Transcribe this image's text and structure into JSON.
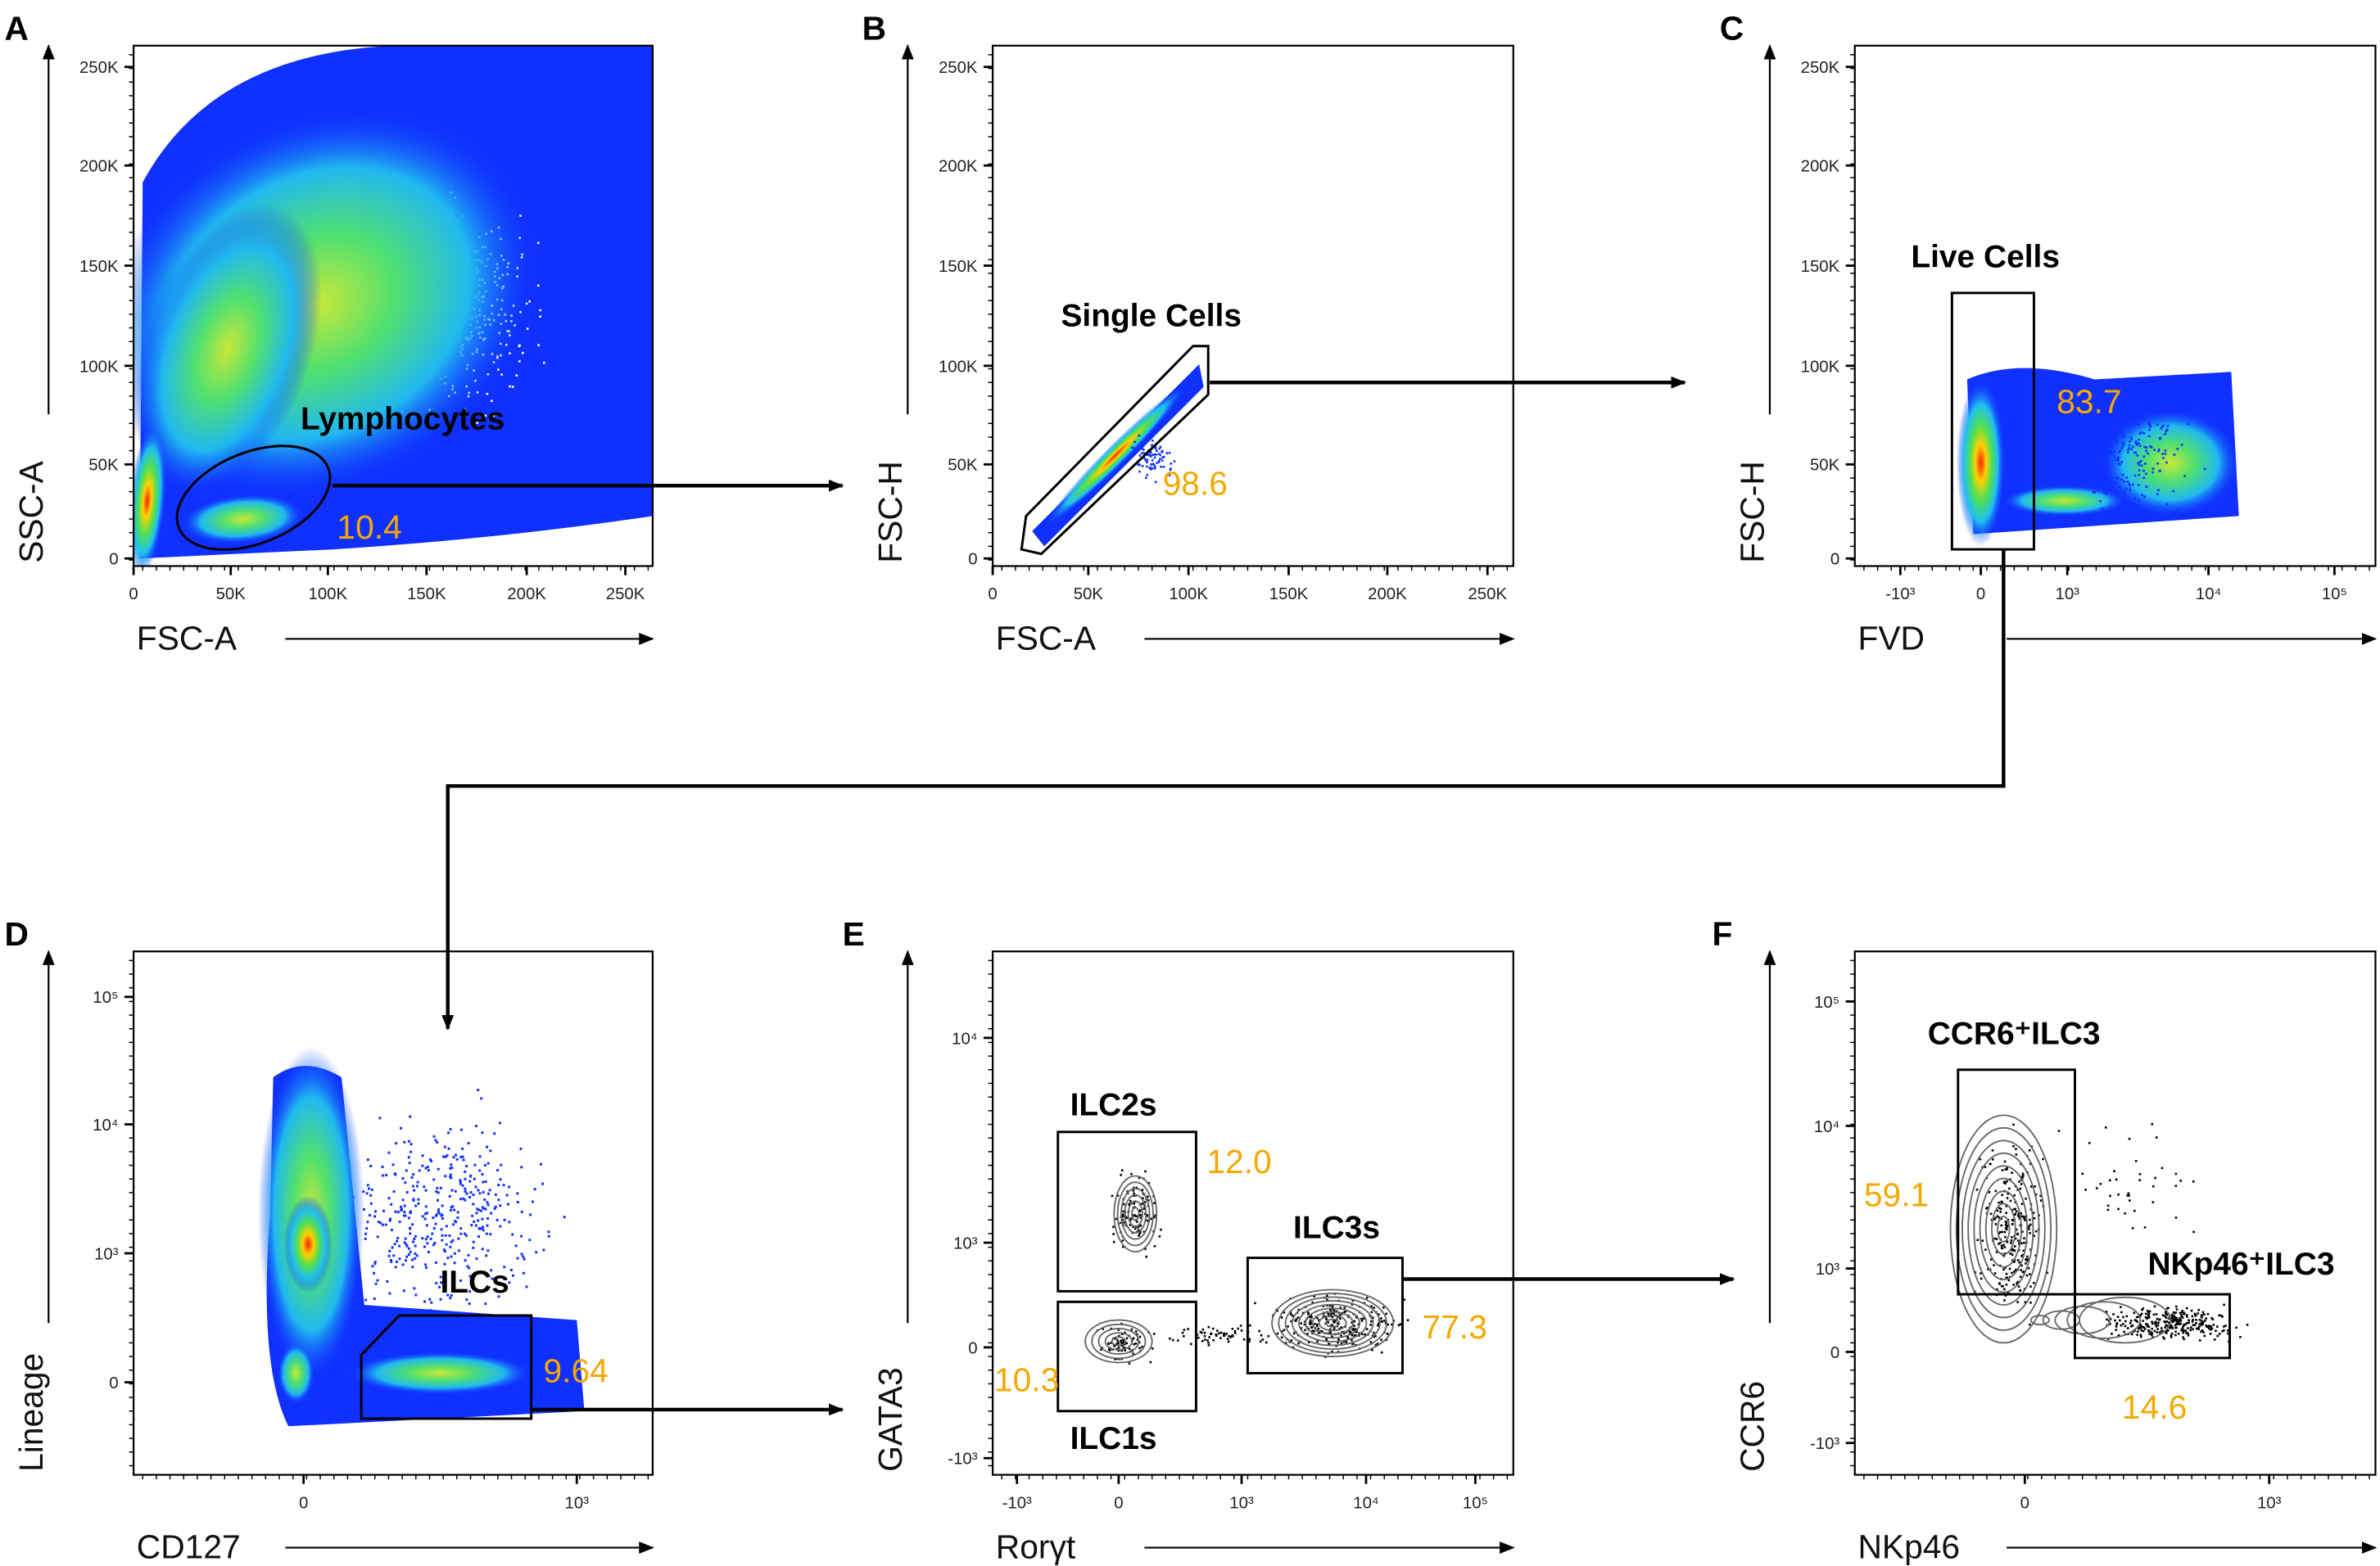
{
  "colors": {
    "percent": "#f5a800",
    "gate": "#000000",
    "density_low": "#1030ff",
    "density_high": "#ff2000",
    "contour": "#666666"
  },
  "chart_data": [
    {
      "type": "scatter",
      "panel": "A",
      "xlabel": "FSC-A",
      "ylabel": "SSC-A",
      "xticks": [
        "0",
        "50K",
        "100K",
        "150K",
        "200K",
        "250K"
      ],
      "yticks": [
        "0",
        "50K",
        "100K",
        "150K",
        "200K",
        "250K"
      ],
      "gates": [
        {
          "name": "Lymphocytes",
          "percent": "10.4"
        }
      ],
      "style": "pseudocolor density"
    },
    {
      "type": "scatter",
      "panel": "B",
      "xlabel": "FSC-A",
      "ylabel": "FSC-H",
      "xticks": [
        "0",
        "50K",
        "100K",
        "150K",
        "200K",
        "250K"
      ],
      "yticks": [
        "0",
        "50K",
        "100K",
        "150K",
        "200K",
        "250K"
      ],
      "gates": [
        {
          "name": "Single Cells",
          "percent": "98.6"
        }
      ],
      "style": "pseudocolor density"
    },
    {
      "type": "scatter",
      "panel": "C",
      "xlabel": "FVD",
      "ylabel": "FSC-H",
      "xticks": [
        "-10³",
        "0",
        "10³",
        "10⁴",
        "10⁵"
      ],
      "yticks": [
        "0",
        "50K",
        "100K",
        "150K",
        "200K",
        "250K"
      ],
      "gates": [
        {
          "name": "Live Cells",
          "percent": "83.7"
        }
      ],
      "style": "pseudocolor density"
    },
    {
      "type": "scatter",
      "panel": "D",
      "xlabel": "CD127",
      "ylabel": "Lineage",
      "xticks": [
        "0",
        "10³"
      ],
      "yticks": [
        "0",
        "10³",
        "10⁴",
        "10⁵"
      ],
      "gates": [
        {
          "name": "ILCs",
          "percent": "9.64"
        }
      ],
      "style": "pseudocolor density"
    },
    {
      "type": "scatter",
      "panel": "E",
      "xlabel": "Rorγt",
      "ylabel": "GATA3",
      "xticks": [
        "-10³",
        "0",
        "10³",
        "10⁴",
        "10⁵"
      ],
      "yticks": [
        "-10³",
        "0",
        "10³",
        "10⁴"
      ],
      "gates": [
        {
          "name": "ILC2s",
          "percent": "12.0"
        },
        {
          "name": "ILC1s",
          "percent": "10.3"
        },
        {
          "name": "ILC3s",
          "percent": "77.3"
        }
      ],
      "style": "contour with outliers"
    },
    {
      "type": "scatter",
      "panel": "F",
      "xlabel": "NKp46",
      "ylabel": "CCR6",
      "xticks": [
        "0",
        "10³"
      ],
      "yticks": [
        "-10³",
        "0",
        "10³",
        "10⁴",
        "10⁵"
      ],
      "gates": [
        {
          "name": "CCR6⁺ILC3",
          "percent": "59.1"
        },
        {
          "name": "NKp46⁺ILC3",
          "percent": "14.6"
        }
      ],
      "style": "contour with outliers"
    }
  ]
}
